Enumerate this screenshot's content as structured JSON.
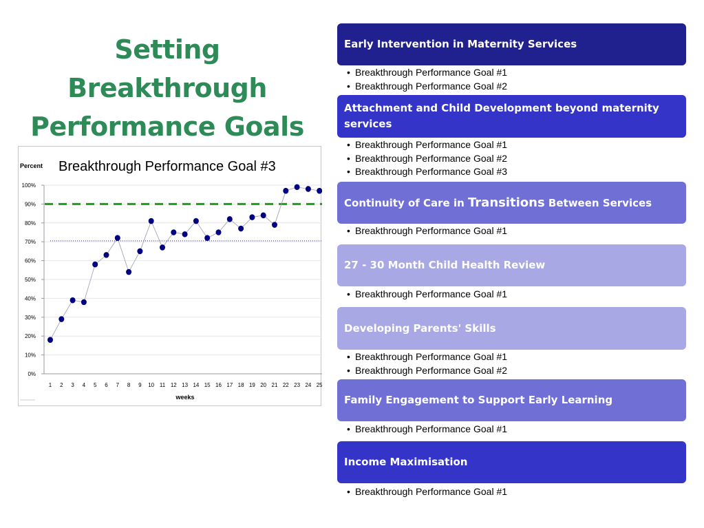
{
  "title": {
    "line1": "Setting Breakthrough",
    "line2": "Performance Goals"
  },
  "chart_data": {
    "type": "line",
    "title": "Breakthrough Performance Goal #3",
    "ylabel": "Percent",
    "xlabel": "weeks",
    "x": [
      1,
      2,
      3,
      4,
      5,
      6,
      7,
      8,
      9,
      10,
      11,
      12,
      13,
      14,
      15,
      16,
      17,
      18,
      19,
      20,
      21,
      22,
      23,
      24,
      25
    ],
    "x_tick_labels": [
      "1",
      "2",
      "3",
      "4",
      "5",
      "6",
      "7",
      "8",
      "9",
      "10",
      "11",
      "12",
      "13",
      "14",
      "15",
      "16",
      "17",
      "18",
      "19",
      "20",
      "21",
      "22",
      "23",
      "24",
      "25"
    ],
    "series": [
      {
        "values": [
          18,
          29,
          39,
          38,
          58,
          63,
          72,
          54,
          65,
          81,
          67,
          75,
          74,
          81,
          72,
          75,
          82,
          77,
          83,
          84,
          79,
          97,
          99,
          98,
          97
        ],
        "color": "#000080"
      }
    ],
    "reference_lines": [
      {
        "value": 90,
        "style": "dashed",
        "color": "#1a9e1a"
      },
      {
        "value": 70.5,
        "style": "dotted",
        "color": "#2222aa"
      }
    ],
    "y_tick_labels": [
      "0%",
      "10%",
      "20%",
      "30%",
      "40%",
      "50%",
      "60%",
      "70%",
      "80%",
      "90%",
      "100%"
    ],
    "ylim": [
      0,
      100
    ],
    "grid": true
  },
  "sections": [
    {
      "title": "Early Intervention in Maternity Services",
      "color": "#20208e",
      "items": [
        "Breakthrough Performance Goal #1",
        "Breakthrough Performance Goal #2"
      ]
    },
    {
      "title": "Attachment and Child Development beyond maternity services",
      "color": "#3434c8",
      "items": [
        "Breakthrough Performance Goal #1",
        "Breakthrough Performance Goal #2",
        "Breakthrough Performance Goal #3"
      ]
    },
    {
      "title_pre": "Continuity of Care in ",
      "title_big": "Transitions",
      "title_post": " Between Services",
      "color": "#6f6fd6",
      "items": [
        "Breakthrough Performance Goal #1"
      ]
    },
    {
      "title": "27 - 30 Month Child Health Review",
      "color": "#a8a8e4",
      "items": [
        "Breakthrough Performance Goal #1"
      ]
    },
    {
      "title": "Developing Parents' Skills",
      "color": "#a8a8e4",
      "items": [
        "Breakthrough Performance Goal #1",
        "Breakthrough Performance Goal #2"
      ]
    },
    {
      "title": "Family Engagement to Support Early Learning",
      "color": "#6f6fd6",
      "items": [
        "Breakthrough Performance Goal #1"
      ]
    },
    {
      "title": "Income Maximisation",
      "color": "#3434c8",
      "items": [
        "Breakthrough Performance Goal #1"
      ]
    }
  ]
}
